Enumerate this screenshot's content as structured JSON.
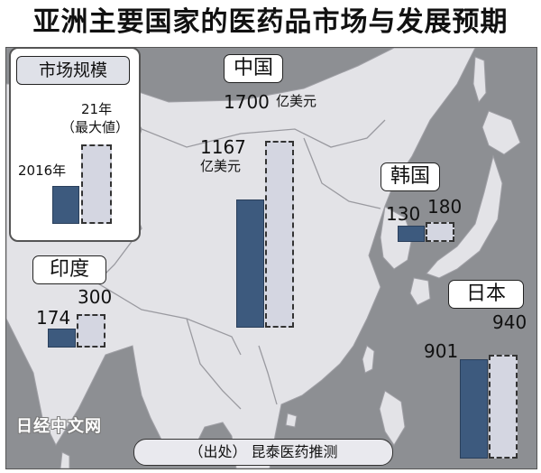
{
  "title": "亚洲主要国家的医药品市场与发展预期",
  "legend": {
    "title": "市场规模",
    "label_2021_line1": "21年",
    "label_2021_line2": "（最大値）",
    "label_2016": "2016年"
  },
  "chart_data": {
    "type": "bar",
    "title": "亚洲主要国家的医药品市场与发展预期",
    "unit": "亿美元",
    "series_names": [
      "2016年",
      "21年（最大値）"
    ],
    "countries": [
      {
        "name": "中国",
        "value_2016": 1167,
        "value_2021": 1700,
        "unit_label": "亿美元"
      },
      {
        "name": "韩国",
        "value_2016": 130,
        "value_2021": 180
      },
      {
        "name": "印度",
        "value_2016": 174,
        "value_2021": 300
      },
      {
        "name": "日本",
        "value_2016": 901,
        "value_2021": 940
      }
    ]
  },
  "watermark": "日经中文网",
  "source": "（出处） 昆泰医药推测",
  "colors": {
    "bar_2016": "#3d5a7e",
    "bar_2021": "#d4d6e1",
    "land": "#e3e3e7",
    "sea": "#8d8f93"
  }
}
